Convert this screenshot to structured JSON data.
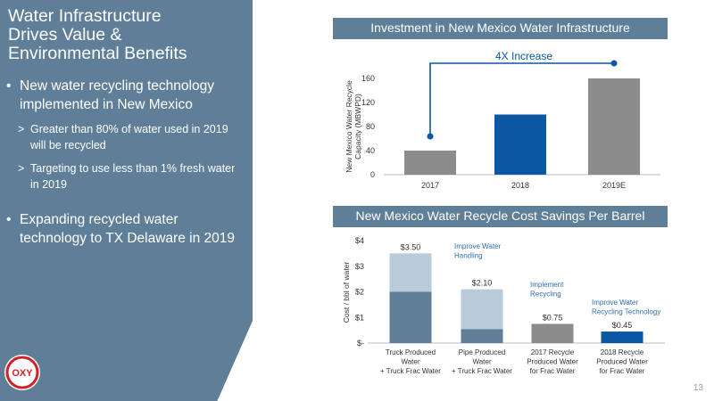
{
  "slide": {
    "title_lines": [
      "Water Infrastructure",
      "Drives Value &",
      "Environmental Benefits"
    ],
    "bullets": [
      {
        "text": "New water recycling technology implemented in New Mexico",
        "subs": [
          "Greater than 80% of water used in 2019 will be recycled",
          "Targeting to use less than 1% fresh water in 2019"
        ]
      },
      {
        "text": "Expanding recycled water technology to TX Delaware in 2019",
        "subs": []
      }
    ],
    "sub_marker": ">",
    "logo_text": "OXY",
    "page_number": "13"
  },
  "colors": {
    "panel": "#5f7f98",
    "gray_bar": "#8c8c8c",
    "navy_bar": "#0b57a4",
    "steel_bar": "#5f7f98",
    "light_bar": "#b9cad9",
    "annotation": "#2f6fb1"
  },
  "chart_data": [
    {
      "type": "bar",
      "title": "Investment in New Mexico Water Infrastructure",
      "categories": [
        "2017",
        "2018",
        "2019E"
      ],
      "values": [
        40,
        100,
        160
      ],
      "ylabel": "New Mexico Water Recycle Capacity (MBWPD)",
      "ylim": [
        0,
        160
      ],
      "yticks": [
        "0",
        "40",
        "80",
        "120",
        "160"
      ],
      "annotation": "4X Increase",
      "grid": false
    },
    {
      "type": "bar",
      "stacked": true,
      "title": "New Mexico Water Recycle Cost Savings Per Barrel",
      "categories": [
        [
          "Truck Produced",
          "Water",
          "+ Truck Frac Water"
        ],
        [
          "Pipe Produced",
          "Water",
          "+ Truck Frac Water"
        ],
        [
          "2017 Recycle",
          "Produced Water",
          "for Frac Water"
        ],
        [
          "2018 Recycle",
          "Produced Water",
          "for Frac Water"
        ]
      ],
      "series": [
        {
          "values": [
            2.0,
            0.55,
            0.75,
            0.45
          ]
        },
        {
          "values": [
            1.5,
            1.55,
            0,
            0
          ]
        }
      ],
      "totals": [
        3.5,
        2.1,
        0.75,
        0.45
      ],
      "data_labels": [
        "$3.50",
        "$2.10",
        "$0.75",
        "$0.45"
      ],
      "ylabel": "Cost / bbl of water",
      "ylim": [
        0,
        4
      ],
      "yticks": [
        "$-",
        "$1",
        "$2",
        "$3",
        "$4"
      ],
      "annotations": [
        [
          "Improve Water",
          "Handling"
        ],
        [
          "Implement",
          "Recycling"
        ],
        [
          "Improve Water",
          "Recycling Technology"
        ]
      ],
      "grid": false
    }
  ]
}
